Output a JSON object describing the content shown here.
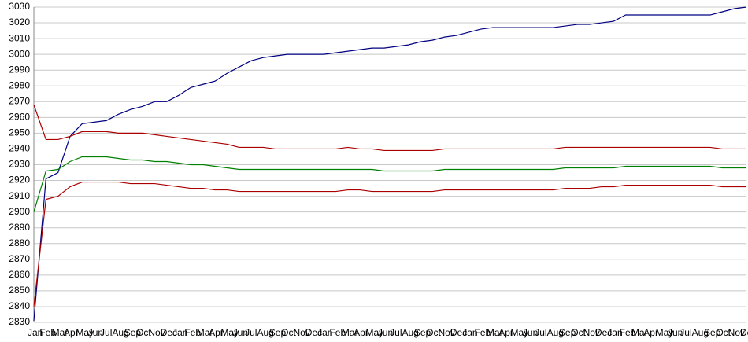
{
  "chart_data": {
    "type": "line",
    "categories": [
      "Jan",
      "Feb",
      "Mar",
      "Apr",
      "May",
      "Jun",
      "Jul",
      "Aug",
      "Sep",
      "Oct",
      "Nov",
      "Dec",
      "Jan",
      "Feb",
      "Mar",
      "Apr",
      "May",
      "Jun",
      "Jul",
      "Aug",
      "Sep",
      "Oct",
      "Nov",
      "Dec",
      "Jan",
      "Feb",
      "Mar",
      "Apr",
      "May",
      "Jun",
      "Jul",
      "Aug",
      "Sep",
      "Oct",
      "Nov",
      "Dec",
      "Jan",
      "Feb",
      "Mar",
      "Apr",
      "May",
      "Jun",
      "Jul",
      "Aug",
      "Sep",
      "Oct",
      "Nov",
      "Dec",
      "Jan",
      "Feb",
      "Mar",
      "Apr",
      "May",
      "Jun",
      "Jul",
      "Aug",
      "Sep",
      "Oct",
      "Nov",
      "Dec"
    ],
    "series": [
      {
        "color": "#000080",
        "values": [
          2831,
          2921,
          2925,
          2948,
          2956,
          2957,
          2958,
          2962,
          2965,
          2967,
          2970,
          2970,
          2974,
          2979,
          2981,
          2983,
          2988,
          2992,
          2996,
          2998,
          2999,
          3000,
          3000,
          3000,
          3000,
          3001,
          3002,
          3003,
          3004,
          3004,
          3005,
          3006,
          3008,
          3009,
          3011,
          3012,
          3014,
          3016,
          3017,
          3017,
          3017,
          3017,
          3017,
          3017,
          3018,
          3019,
          3019,
          3020,
          3021,
          3025,
          3025,
          3025,
          3025,
          3025,
          3025,
          3025,
          3025,
          3027,
          3029,
          3030
        ]
      },
      {
        "color": "#aa0000",
        "values": [
          2968,
          2946,
          2946,
          2948,
          2951,
          2951,
          2951,
          2950,
          2950,
          2950,
          2949,
          2948,
          2947,
          2946,
          2945,
          2944,
          2943,
          2941,
          2941,
          2941,
          2940,
          2940,
          2940,
          2940,
          2940,
          2940,
          2941,
          2940,
          2940,
          2939,
          2939,
          2939,
          2939,
          2939,
          2940,
          2940,
          2940,
          2940,
          2940,
          2940,
          2940,
          2940,
          2940,
          2940,
          2941,
          2941,
          2941,
          2941,
          2941,
          2941,
          2941,
          2941,
          2941,
          2941,
          2941,
          2941,
          2941,
          2940,
          2940,
          2940
        ]
      },
      {
        "color": "#008000",
        "values": [
          2900,
          2926,
          2927,
          2932,
          2935,
          2935,
          2935,
          2934,
          2933,
          2933,
          2932,
          2932,
          2931,
          2930,
          2930,
          2929,
          2928,
          2927,
          2927,
          2927,
          2927,
          2927,
          2927,
          2927,
          2927,
          2927,
          2927,
          2927,
          2927,
          2926,
          2926,
          2926,
          2926,
          2926,
          2927,
          2927,
          2927,
          2927,
          2927,
          2927,
          2927,
          2927,
          2927,
          2927,
          2928,
          2928,
          2928,
          2928,
          2928,
          2929,
          2929,
          2929,
          2929,
          2929,
          2929,
          2929,
          2929,
          2928,
          2928,
          2928
        ]
      },
      {
        "color": "#aa0000",
        "values": [
          2840,
          2908,
          2910,
          2916,
          2919,
          2919,
          2919,
          2919,
          2918,
          2918,
          2918,
          2917,
          2916,
          2915,
          2915,
          2914,
          2914,
          2913,
          2913,
          2913,
          2913,
          2913,
          2913,
          2913,
          2913,
          2913,
          2914,
          2914,
          2913,
          2913,
          2913,
          2913,
          2913,
          2913,
          2914,
          2914,
          2914,
          2914,
          2914,
          2914,
          2914,
          2914,
          2914,
          2914,
          2915,
          2915,
          2915,
          2916,
          2916,
          2917,
          2917,
          2917,
          2917,
          2917,
          2917,
          2917,
          2917,
          2916,
          2916,
          2916
        ]
      }
    ],
    "ylim": [
      2830,
      3030
    ],
    "yticks": [
      2830,
      2840,
      2850,
      2860,
      2870,
      2880,
      2890,
      2900,
      2910,
      2920,
      2930,
      2940,
      2950,
      2960,
      2970,
      2980,
      2990,
      3000,
      3010,
      3020,
      3030
    ],
    "grid": true
  }
}
